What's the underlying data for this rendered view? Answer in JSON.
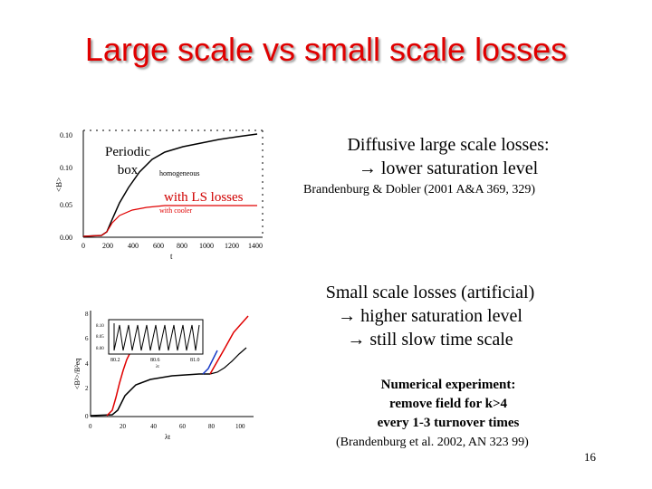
{
  "title": "Large scale vs small scale losses",
  "plot_top": {
    "annot_periodic_1": "Periodic",
    "annot_periodic_2": "box",
    "annot_homog": "homogeneous",
    "annot_ls": "with LS losses",
    "annot_cooler": "with cooler",
    "yticks": [
      "0.10",
      "0.10",
      "0.05",
      "0.00"
    ],
    "xticks": [
      "0",
      "200",
      "400",
      "600",
      "800",
      "1000",
      "1200",
      "1400"
    ],
    "xlabel": "t",
    "ylabel": "<B>",
    "colors": {
      "black": "#000000",
      "red": "#e00000",
      "annot_red": "#d00000"
    }
  },
  "plot_bottom": {
    "yticks": [
      "8",
      "6",
      "4",
      "2",
      "0"
    ],
    "xticks": [
      "0",
      "20",
      "40",
      "60",
      "80",
      "100"
    ],
    "xlabel": "λt",
    "ylabel": "<B²>/B²eq",
    "inset_yticks": [
      "8.10",
      "8.05",
      "8.00"
    ],
    "inset_xticks": [
      "80.2",
      "80.6",
      "81.0"
    ],
    "inset_xlabel": "λt",
    "colors": {
      "black": "#000000",
      "red": "#e00000",
      "blue": "#1a3cc8"
    }
  },
  "text": {
    "line1": "Diffusive large scale losses:",
    "line2": "lower saturation level",
    "ref1": "Brandenburg & Dobler (2001 A&A 369, 329)",
    "ss1": "Small scale losses (artificial)",
    "ss2": "higher saturation level",
    "ss3": "still slow time scale",
    "ne1": "Numerical experiment:",
    "ne2": "remove field for k>4",
    "ne3": "every 1-3 turnover times",
    "ref2": "(Brandenburg et al. 2002, AN 323 99)",
    "arrow": "→",
    "page_number": "16"
  }
}
